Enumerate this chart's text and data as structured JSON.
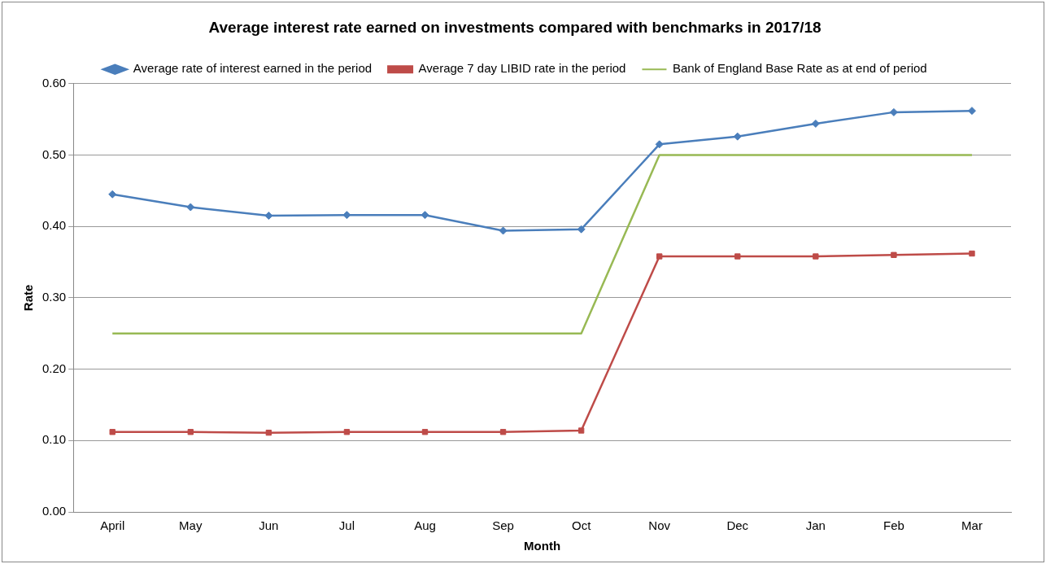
{
  "chart_data": {
    "type": "line",
    "title": "Average interest rate earned on investments compared with benchmarks in 2017/18",
    "xlabel": "Month",
    "ylabel": "Rate",
    "categories": [
      "April",
      "May",
      "Jun",
      "Jul",
      "Aug",
      "Sep",
      "Oct",
      "Nov",
      "Dec",
      "Jan",
      "Feb",
      "Mar"
    ],
    "series": [
      {
        "name": "Average rate of interest earned in the period",
        "color": "#4a7ebb",
        "marker": "diamond",
        "values": [
          0.445,
          0.427,
          0.415,
          0.416,
          0.416,
          0.394,
          0.396,
          0.515,
          0.526,
          0.544,
          0.56,
          0.562
        ]
      },
      {
        "name": "Average 7 day LIBID rate in the period",
        "color": "#be4b48",
        "marker": "square",
        "values": [
          0.112,
          0.112,
          0.111,
          0.112,
          0.112,
          0.112,
          0.114,
          0.358,
          0.358,
          0.358,
          0.36,
          0.362
        ]
      },
      {
        "name": "Bank of England Base Rate as at end of period",
        "color": "#98b954",
        "marker": "none",
        "values": [
          0.25,
          0.25,
          0.25,
          0.25,
          0.25,
          0.25,
          0.25,
          0.5,
          0.5,
          0.5,
          0.5,
          0.5
        ]
      }
    ],
    "ylim": [
      0,
      0.6
    ],
    "yticks": [
      {
        "value": 0,
        "label": "0.00"
      },
      {
        "value": 0.1,
        "label": "0.10"
      },
      {
        "value": 0.2,
        "label": "0.20"
      },
      {
        "value": 0.3,
        "label": "0.30"
      },
      {
        "value": 0.4,
        "label": "0.40"
      },
      {
        "value": 0.5,
        "label": "0.50"
      },
      {
        "value": 0.6,
        "label": "0.60"
      }
    ],
    "grid": "y",
    "legend": "top",
    "line_style": "solid"
  }
}
